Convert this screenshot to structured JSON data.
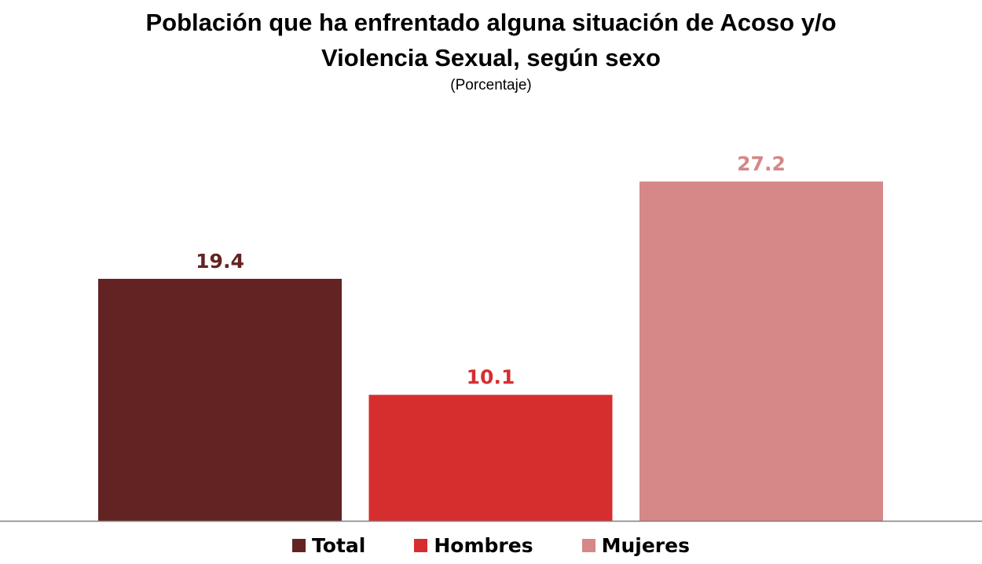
{
  "chart_data": {
    "type": "bar",
    "title": "Población que ha enfrentado alguna situación de Acoso y/o Violencia Sexual, según sexo",
    "title_lines": [
      "Población que ha enfrentado alguna situación de Acoso y/o",
      "Violencia Sexual, según sexo"
    ],
    "subtitle": "(Porcentaje)",
    "categories": [
      "Total",
      "Hombres",
      "Mujeres"
    ],
    "values": [
      19.4,
      10.1,
      27.2
    ],
    "colors": [
      "#632322",
      "#d62e2e",
      "#d68787"
    ],
    "ylim": [
      0,
      27.9
    ],
    "grid": false,
    "legend": "bottom",
    "legend_entries": [
      "Total",
      "Hombres",
      "Mujeres"
    ]
  }
}
